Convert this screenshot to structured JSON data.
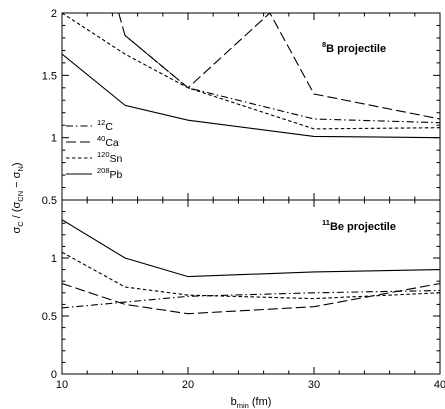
{
  "chart_data": {
    "type": "line",
    "xlabel": {
      "main": "b",
      "sub": "min",
      "rest": " (fm)"
    },
    "ylabel": {
      "parts": [
        {
          "t": "σ",
          "s": "normal"
        },
        {
          "t": "C",
          "s": "sub"
        },
        {
          "t": " / (σ",
          "s": "normal"
        },
        {
          "t": "CN",
          "s": "sub"
        },
        {
          "t": " − σ",
          "s": "normal"
        },
        {
          "t": "N",
          "s": "sub"
        },
        {
          "t": ")",
          "s": "normal"
        }
      ]
    },
    "xlim": [
      10,
      40
    ],
    "xticks": [
      "10",
      "20",
      "30",
      "40"
    ],
    "legend": {
      "placement": "left-middle of top panel",
      "entries": [
        {
          "mass": "12",
          "element": "C",
          "dash": "dash-dot"
        },
        {
          "mass": "40",
          "element": "Ca",
          "dash": "long-dash"
        },
        {
          "mass": "120",
          "element": "Sn",
          "dash": "short-dash"
        },
        {
          "mass": "208",
          "element": "Pb",
          "dash": "solid"
        }
      ]
    },
    "panels": [
      {
        "label": {
          "mass": "8",
          "element": "B",
          "text": " projectile"
        },
        "ylim": [
          0.5,
          2.0
        ],
        "yticks": [
          "2",
          "1.5",
          "1",
          "0.5"
        ],
        "series": [
          {
            "target": "12C",
            "dash": "dash-dot",
            "x": [
              15,
              20,
              30,
              40
            ],
            "y": [
              1.82,
              1.4,
              1.15,
              1.12
            ]
          },
          {
            "target": "40Ca",
            "dash": "long-dash",
            "x": [
              14.5,
              15,
              20,
              26.5,
              30,
              40
            ],
            "y": [
              2.0,
              1.82,
              1.4,
              2.0,
              1.35,
              1.15
            ]
          },
          {
            "target": "120Sn",
            "dash": "short-dash",
            "x": [
              10,
              15,
              20,
              30,
              40
            ],
            "y": [
              2.0,
              1.67,
              1.4,
              1.07,
              1.08
            ]
          },
          {
            "target": "208Pb",
            "dash": "solid",
            "x": [
              10,
              15,
              20,
              30,
              40
            ],
            "y": [
              1.67,
              1.26,
              1.14,
              1.01,
              1.0
            ]
          }
        ]
      },
      {
        "label": {
          "mass": "11",
          "element": "Be",
          "text": " projectile"
        },
        "ylim": [
          0.0,
          1.5
        ],
        "yticks": [
          "1",
          "0.5",
          "0"
        ],
        "series": [
          {
            "target": "12C",
            "dash": "dash-dot",
            "x": [
              10,
              15,
              20,
              30,
              40
            ],
            "y": [
              0.57,
              0.62,
              0.67,
              0.7,
              0.72
            ]
          },
          {
            "target": "40Ca",
            "dash": "long-dash",
            "x": [
              10,
              15,
              20,
              30,
              40
            ],
            "y": [
              0.78,
              0.6,
              0.52,
              0.58,
              0.78
            ]
          },
          {
            "target": "120Sn",
            "dash": "short-dash",
            "x": [
              10,
              15,
              20,
              30,
              40
            ],
            "y": [
              1.05,
              0.75,
              0.68,
              0.65,
              0.7
            ]
          },
          {
            "target": "208Pb",
            "dash": "solid",
            "x": [
              10,
              15,
              20,
              30,
              40
            ],
            "y": [
              1.33,
              1.0,
              0.84,
              0.88,
              0.9
            ]
          }
        ]
      }
    ]
  }
}
